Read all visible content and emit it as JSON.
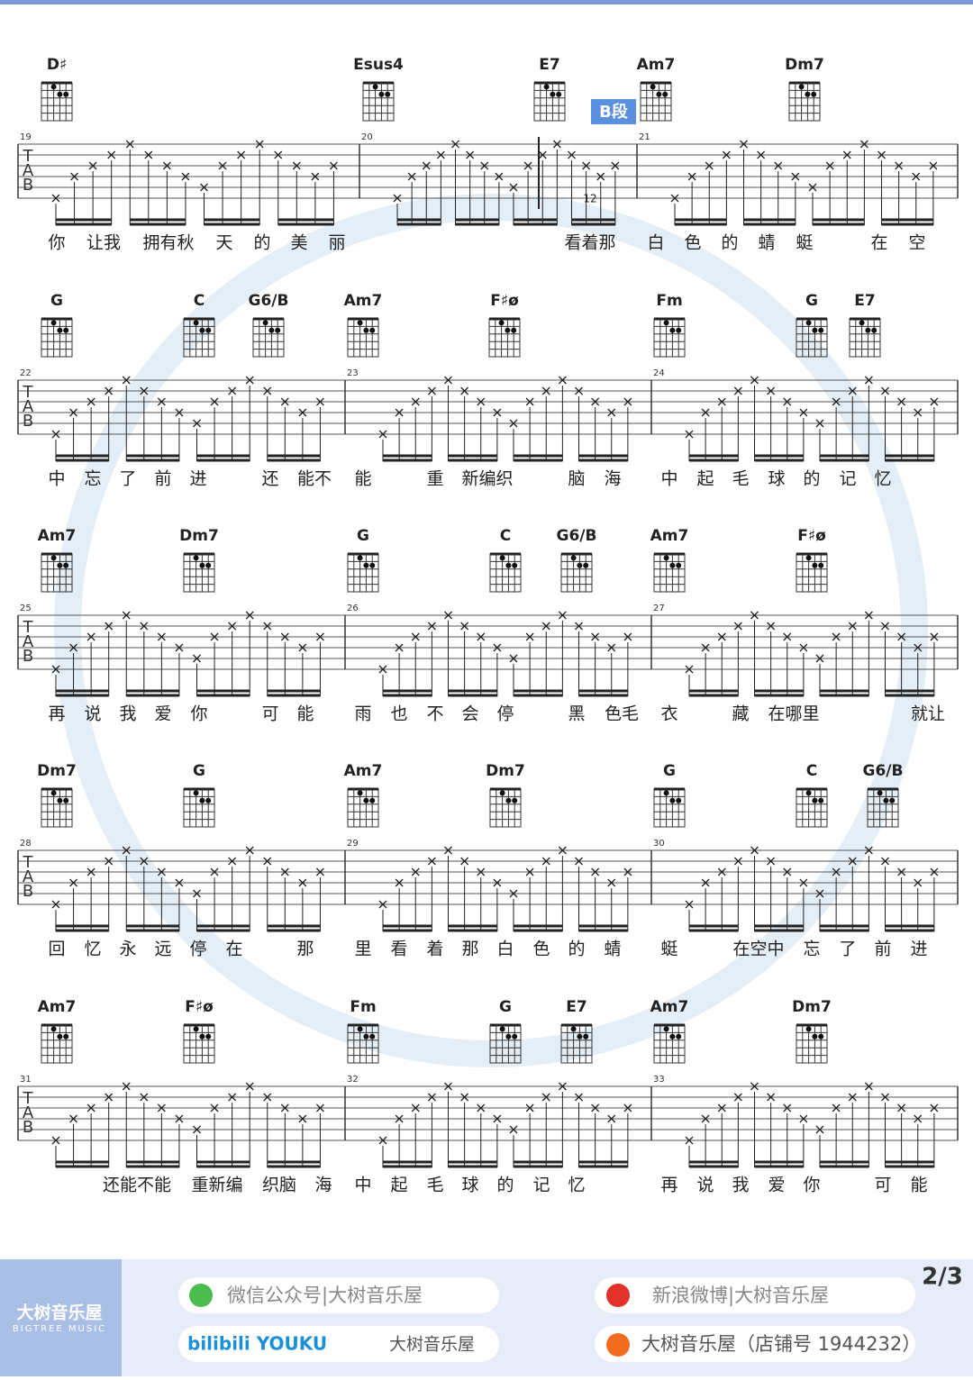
{
  "systems": [
    {
      "measures": [
        "19",
        "20",
        "21"
      ],
      "chords": [
        "D♯",
        "Esus4",
        "E7",
        "Am7",
        "Dm7"
      ],
      "lyrics": [
        "你",
        "让我",
        "拥有秋",
        "天",
        "的",
        "美",
        "丽",
        "看着那",
        "白",
        "色",
        "的",
        "蜻",
        "蜓",
        "在",
        "空"
      ]
    },
    {
      "measures": [
        "22",
        "23",
        "24"
      ],
      "chords": [
        "G",
        "C",
        "G6/B",
        "Am7",
        "F♯ø",
        "Fm",
        "G",
        "E7"
      ],
      "lyrics": [
        "中",
        "忘",
        "了",
        "前",
        "进",
        "还",
        "能不",
        "能",
        "重",
        "新编织",
        "脑",
        "海",
        "中",
        "起",
        "毛",
        "球",
        "的",
        "记",
        "忆"
      ]
    },
    {
      "measures": [
        "25",
        "26",
        "27"
      ],
      "chords": [
        "Am7",
        "Dm7",
        "G",
        "C",
        "G6/B",
        "Am7",
        "F♯ø"
      ],
      "lyrics": [
        "再",
        "说",
        "我",
        "爱",
        "你",
        "可",
        "能",
        "雨",
        "也",
        "不",
        "会",
        "停",
        "黑",
        "色毛",
        "衣",
        "藏",
        "在哪里",
        "就让"
      ]
    },
    {
      "measures": [
        "28",
        "29",
        "30"
      ],
      "chords": [
        "Dm7",
        "G",
        "Am7",
        "Dm7",
        "G",
        "C",
        "G6/B"
      ],
      "lyrics": [
        "回",
        "忆",
        "永",
        "远",
        "停",
        "在",
        "那",
        "里",
        "看",
        "着",
        "那",
        "白",
        "色",
        "的",
        "蜻",
        "蜓",
        "在空中",
        "忘",
        "了",
        "前",
        "进"
      ]
    },
    {
      "measures": [
        "31",
        "32",
        "33"
      ],
      "chords": [
        "Am7",
        "F♯ø",
        "Fm",
        "G",
        "E7",
        "Am7",
        "Dm7"
      ],
      "lyrics": [
        "还能不能",
        "重新编",
        "织脑",
        "海",
        "中",
        "起",
        "毛",
        "球",
        "的",
        "记",
        "忆",
        "再",
        "说",
        "我",
        "爱",
        "你",
        "可",
        "能"
      ]
    }
  ],
  "section_label": "B段",
  "fret_label": "12",
  "page_number": "2/3",
  "footer": {
    "brand": "大树音乐屋",
    "brand_en": "BIGTREE MUSIC",
    "wechat": "微信公众号|大树音乐屋",
    "weibo": "新浪微博|大树音乐屋",
    "video": "bilibili YOUKU",
    "video_name": "大树音乐屋",
    "shop": "大树音乐屋（店铺号 1944232）"
  }
}
